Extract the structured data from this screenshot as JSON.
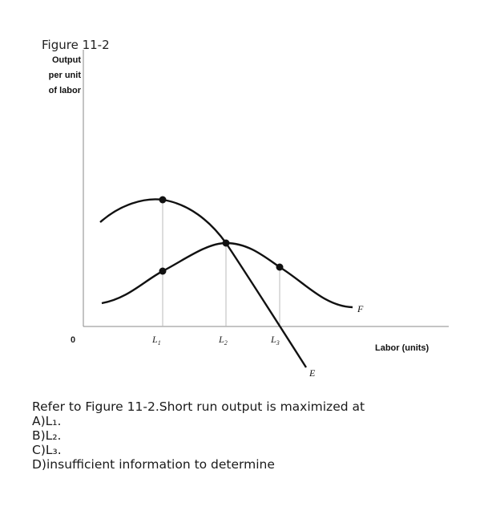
{
  "chart_data": {
    "type": "line",
    "title": "Figure 11-2",
    "ylabel": [
      "Output",
      "per unit",
      "of labor"
    ],
    "xlabel": "Labor (units)",
    "origin_label": "0",
    "x_ticks": [
      "L1",
      "L2",
      "L3"
    ],
    "series": [
      {
        "name": "F",
        "description_points": [
          [
            -2.0,
            0.15
          ],
          [
            -1.1,
            0.3
          ],
          [
            0,
            0.55
          ],
          [
            1,
            0.86
          ],
          [
            1.9,
            0.64
          ],
          [
            2.8,
            0.28
          ],
          [
            3.35,
            0.12
          ]
        ]
      },
      {
        "name": "E",
        "description_points": [
          [
            -1.05,
            0.97
          ],
          [
            -0.5,
            1.18
          ],
          [
            0,
            1.2
          ],
          [
            0.55,
            1.05
          ],
          [
            1.0,
            0.86
          ],
          [
            1.5,
            0.35
          ],
          [
            2.0,
            -0.25
          ]
        ]
      }
    ],
    "highlighted_points": [
      {
        "x": "L1",
        "series": "E"
      },
      {
        "x": "L1",
        "series": "F"
      },
      {
        "x": "L2",
        "series": "E"
      },
      {
        "x": "L3",
        "series": "F"
      }
    ],
    "grid": false,
    "legend": "none (curves labeled directly)"
  },
  "question": {
    "stem": "Refer to Figure 11-2.Short run output is maximized at",
    "options": [
      "A)L₁.",
      "B)L₂.",
      "C)L₃.",
      "D)insufficient information to determine"
    ]
  }
}
